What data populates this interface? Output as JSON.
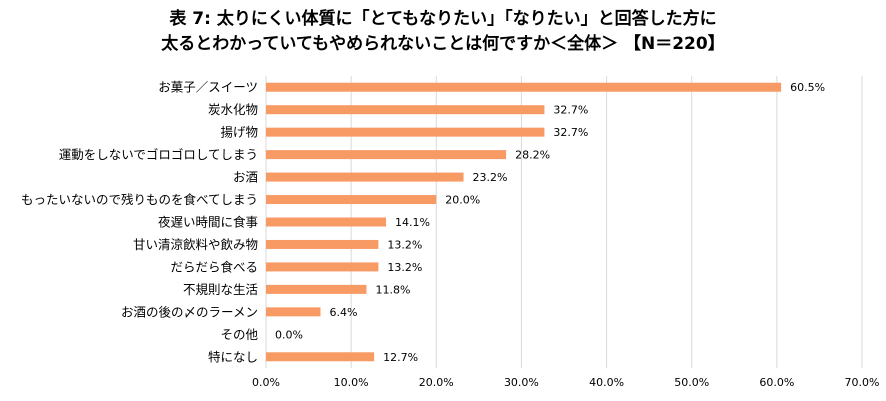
{
  "chart_data": {
    "type": "bar",
    "orientation": "horizontal",
    "title_line1": "表 7: 太りにくい体質に「とてもなりたい」「なりたい」と回答した方に",
    "title_line2": "太るとわかっていてもやめられないことは何ですか＜全体＞ 【N＝220】",
    "categories": [
      "お菓子／スイーツ",
      "炭水化物",
      "揚げ物",
      "運動をしないでゴロゴロしてしまう",
      "お酒",
      "もったいないので残りものを食べてしまう",
      "夜遅い時間に食事",
      "甘い清涼飲料や飲み物",
      "だらだら食べる",
      "不規則な生活",
      "お酒の後の〆のラーメン",
      "その他",
      "特になし"
    ],
    "values": [
      60.5,
      32.7,
      32.7,
      28.2,
      23.2,
      20.0,
      14.1,
      13.2,
      13.2,
      11.8,
      6.4,
      0.0,
      12.7
    ],
    "value_labels": [
      "60.5%",
      "32.7%",
      "32.7%",
      "28.2%",
      "23.2%",
      "20.0%",
      "14.1%",
      "13.2%",
      "13.2%",
      "11.8%",
      "6.4%",
      "0.0%",
      "12.7%"
    ],
    "xlim": [
      0,
      70
    ],
    "xticks": [
      0,
      10,
      20,
      30,
      40,
      50,
      60,
      70
    ],
    "xtick_labels": [
      "0.0%",
      "10.0%",
      "20.0%",
      "30.0%",
      "40.0%",
      "50.0%",
      "60.0%",
      "70.0%"
    ],
    "bar_color": "#F79A64",
    "grid": true,
    "legend": "none"
  }
}
